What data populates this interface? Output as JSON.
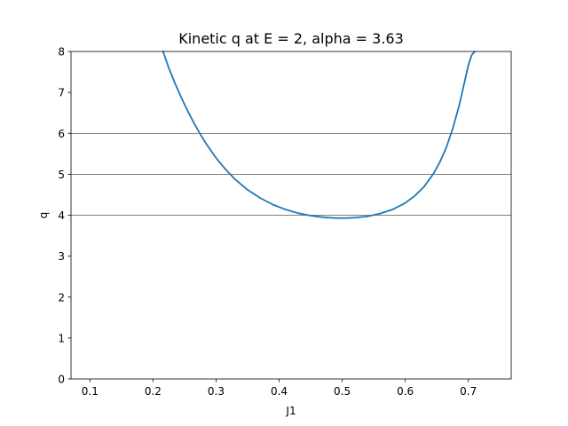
{
  "chart_data": {
    "type": "line",
    "title": "Kinetic q at E = 2, alpha = 3.63",
    "xlabel": "J1",
    "ylabel": "q",
    "xlim": [
      0.07,
      0.768
    ],
    "ylim": [
      0,
      8
    ],
    "xticks": [
      0.1,
      0.2,
      0.3,
      0.4,
      0.5,
      0.6,
      0.7
    ],
    "xtick_labels": [
      "0.1",
      "0.2",
      "0.3",
      "0.4",
      "0.5",
      "0.6",
      "0.7"
    ],
    "yticks": [
      0,
      1,
      2,
      3,
      4,
      5,
      6,
      7,
      8
    ],
    "ytick_labels": [
      "0",
      "1",
      "2",
      "3",
      "4",
      "5",
      "6",
      "7",
      "8"
    ],
    "hlines": [
      4,
      5,
      6
    ],
    "grid": false,
    "series": [
      {
        "color": "#1f77b4",
        "x": [
          0.216,
          0.225,
          0.235,
          0.245,
          0.255,
          0.265,
          0.275,
          0.285,
          0.3,
          0.315,
          0.33,
          0.35,
          0.37,
          0.39,
          0.41,
          0.43,
          0.45,
          0.47,
          0.49,
          0.505,
          0.52,
          0.54,
          0.56,
          0.58,
          0.6,
          0.615,
          0.63,
          0.645,
          0.655,
          0.665,
          0.675,
          0.685,
          0.69,
          0.695,
          0.7,
          0.705,
          0.71
        ],
        "y": [
          8.0,
          7.6,
          7.22,
          6.87,
          6.55,
          6.25,
          5.98,
          5.73,
          5.4,
          5.12,
          4.88,
          4.62,
          4.42,
          4.26,
          4.14,
          4.05,
          3.99,
          3.95,
          3.93,
          3.93,
          3.94,
          3.97,
          4.04,
          4.14,
          4.3,
          4.47,
          4.7,
          5.02,
          5.3,
          5.65,
          6.1,
          6.65,
          6.98,
          7.32,
          7.66,
          7.9,
          8.0
        ]
      }
    ]
  }
}
